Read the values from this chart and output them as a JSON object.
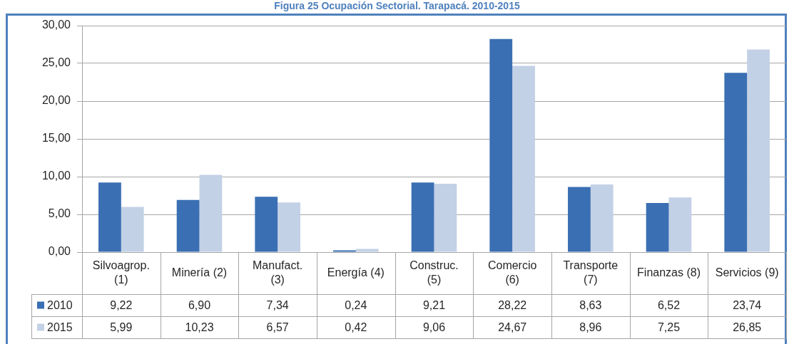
{
  "chart_data": {
    "type": "bar",
    "title": "Figura 25 Ocupación Sectorial. Tarapacá. 2010-2015",
    "categories": [
      "Silvoagrop. (1)",
      "Minería (2)",
      "Manufact. (3)",
      "Energía (4)",
      "Construc. (5)",
      "Comercio (6)",
      "Transporte (7)",
      "Finanzas (8)",
      "Servicios (9)"
    ],
    "series": [
      {
        "name": "2010",
        "color": "#3a6fb3",
        "values": [
          9.22,
          6.9,
          7.34,
          0.24,
          9.21,
          28.22,
          8.63,
          6.52,
          23.74
        ],
        "value_labels": [
          "9,22",
          "6,90",
          "7,34",
          "0,24",
          "9,21",
          "28,22",
          "8,63",
          "6,52",
          "23,74"
        ]
      },
      {
        "name": "2015",
        "color": "#c3d1e6",
        "values": [
          5.99,
          10.23,
          6.57,
          0.42,
          9.06,
          24.67,
          8.96,
          7.25,
          26.85
        ],
        "value_labels": [
          "5,99",
          "10,23",
          "6,57",
          "0,42",
          "9,06",
          "24,67",
          "8,96",
          "7,25",
          "26,85"
        ]
      }
    ],
    "ylim": [
      0,
      30
    ],
    "yticks": [
      {
        "value": 0,
        "label": "0,00"
      },
      {
        "value": 5,
        "label": "5,00"
      },
      {
        "value": 10,
        "label": "10,00"
      },
      {
        "value": 15,
        "label": "15,00"
      },
      {
        "value": 20,
        "label": "20,00"
      },
      {
        "value": 25,
        "label": "25,00"
      },
      {
        "value": 30,
        "label": "30,00"
      }
    ],
    "grid": "y",
    "legend": "bottom left"
  }
}
